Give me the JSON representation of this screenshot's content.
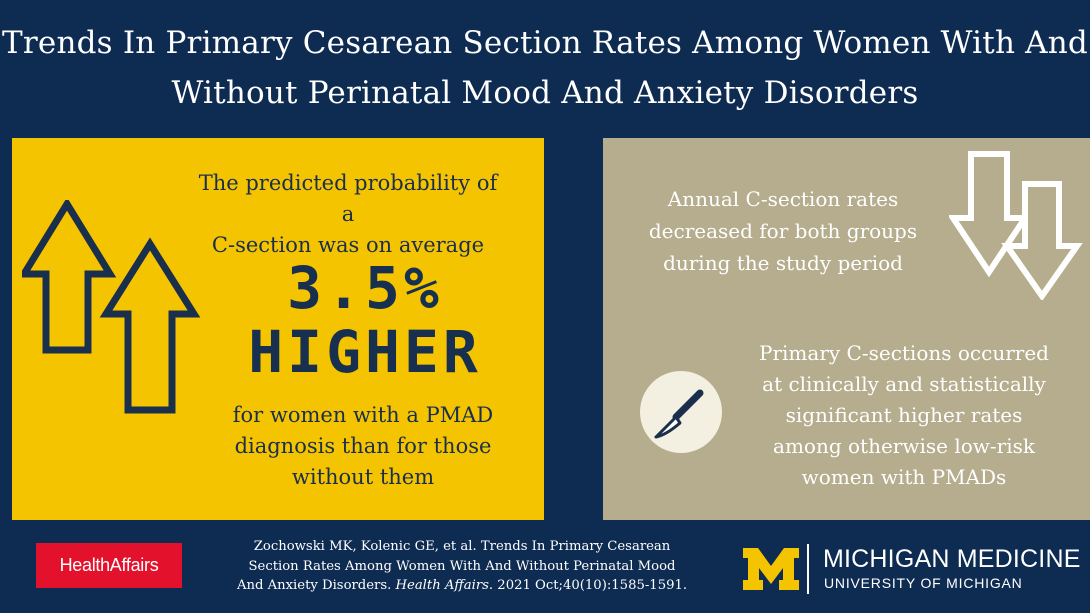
{
  "title": {
    "line1": "Trends In Primary Cesarean Section Rates Among Women With And",
    "line2": "Without Perinatal Mood And Anxiety Disorders"
  },
  "left_panel": {
    "intro_line1": "The predicted probability of a",
    "intro_line2": "C-section was on average",
    "big_value": "3.5%",
    "big_word": "HIGHER",
    "outro_line1": "for women with a PMAD",
    "outro_line2": "diagnosis than for those",
    "outro_line3": "without them",
    "icon": "up-arrows-icon",
    "background_color": "#f5c400"
  },
  "right_panel": {
    "top_line1": "Annual C-section rates",
    "top_line2": "decreased for both groups",
    "top_line3": "during the study period",
    "bottom_line1": "Primary C-sections occurred",
    "bottom_line2": "at clinically and statistically",
    "bottom_line3": "significant higher rates",
    "bottom_line4": "among otherwise low-risk",
    "bottom_line5": "women with PMADs",
    "icons": [
      "down-arrows-icon",
      "scalpel-icon"
    ],
    "background_color": "#b5ad8d"
  },
  "footer": {
    "publisher_logo": "HealthAffairs",
    "citation_line1": "Zochowski MK, Kolenic GE, et al. Trends In Primary Cesarean",
    "citation_line2": "Section Rates Among Women With And Without Perinatal Mood",
    "citation_line3_pre": "And Anxiety Disorders. ",
    "citation_journal": "Health Affairs.",
    "citation_line3_post": " 2021 Oct;40(10):1585-1591.",
    "institution_name": "MICHIGAN MEDICINE",
    "institution_sub": "UNIVERSITY OF MICHIGAN",
    "logo_letter": "M"
  },
  "colors": {
    "navy": "#0e2b51",
    "maize": "#f5c400",
    "tan": "#b5ad8d",
    "red": "#e3112b"
  }
}
